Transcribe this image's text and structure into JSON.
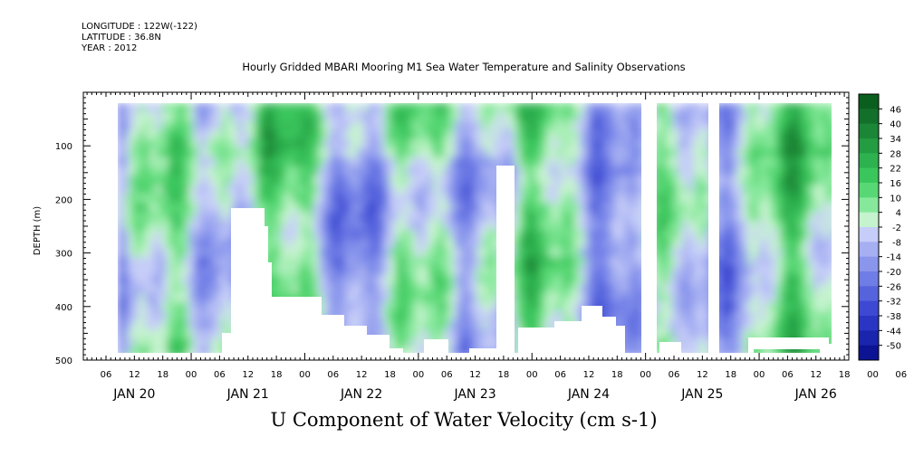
{
  "header": {
    "longitude": "LONGITUDE : 122W(-122)",
    "latitude": "LATITUDE : 36.8N",
    "year": "YEAR : 2012"
  },
  "chart_data": {
    "type": "heatmap",
    "title": "Hourly Gridded MBARI Mooring M1 Sea Water Temperature and Salinity Observations",
    "subtitle": "U Component of Water Velocity (cm s-1)",
    "ylabel": "DEPTH (m)",
    "ylim": [
      500,
      0
    ],
    "y_ticks": [
      "100",
      "200",
      "300",
      "400",
      "500"
    ],
    "x_hour_ticks": [
      "06",
      "12",
      "18",
      "00",
      "06",
      "12",
      "18",
      "00",
      "06",
      "12",
      "18",
      "00",
      "06",
      "12",
      "18",
      "00",
      "06",
      "12",
      "18",
      "00",
      "06",
      "12",
      "18",
      "00",
      "06",
      "12",
      "18",
      "00",
      "06",
      "12",
      "18"
    ],
    "x_day_labels": [
      "JAN 20",
      "JAN 21",
      "JAN 22",
      "JAN 23",
      "JAN 24",
      "JAN 25",
      "JAN 26"
    ],
    "colorbar_levels": [
      "46",
      "40",
      "34",
      "28",
      "22",
      "16",
      "10",
      "4",
      "-2",
      "-8",
      "-14",
      "-20",
      "-26",
      "-32",
      "-38",
      "-44",
      "-50"
    ],
    "colorbar_colors": [
      "#0b5f1e",
      "#13702a",
      "#1b8636",
      "#239c42",
      "#2db24f",
      "#3ac65d",
      "#58d874",
      "#86e89b",
      "#c4f3cd",
      "#c6cdf8",
      "#a5aff2",
      "#8996ec",
      "#6f7de6",
      "#5563dd",
      "#3d49d2",
      "#2a35c3",
      "#1a25ad",
      "#0c1494"
    ],
    "gaps": [
      {
        "day_start": 4.0,
        "day_end": 4.05
      },
      {
        "day_start": 4.6,
        "day_end": 4.65
      }
    ]
  }
}
